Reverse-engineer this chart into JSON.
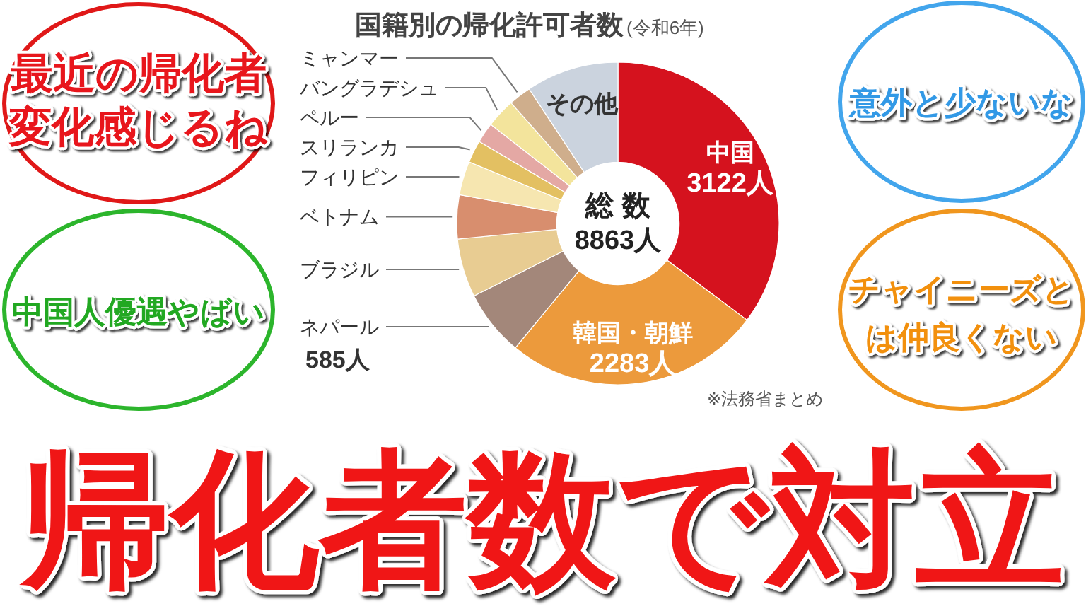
{
  "chart_data": {
    "type": "donut",
    "title": "国籍別の帰化許可者数",
    "subtitle": "(令和6年)",
    "categories": [
      "中国",
      "韓国・朝鮮",
      "ネパール",
      "ブラジル",
      "ベトナム",
      "フィリピン",
      "スリランカ",
      "ペルー",
      "バングラデシュ",
      "ミャンマー",
      "その他"
    ],
    "values": [
      3122,
      2283,
      585,
      520,
      390,
      300,
      200,
      180,
      260,
      200,
      823
    ],
    "colors": [
      "#d5121e",
      "#ec9a3c",
      "#a3877a",
      "#e8cc92",
      "#d88e6e",
      "#f6e6b0",
      "#e3c062",
      "#e4a8a4",
      "#f3e49c",
      "#cfae8c",
      "#cbd3de"
    ],
    "value_labels": [
      "3122人",
      "2283人",
      "585人",
      null,
      null,
      null,
      null,
      null,
      null,
      null,
      null
    ],
    "annotations": [
      "総 数",
      "8863人",
      "※法務省まとめ",
      "最近の帰化者変化感じるね",
      "中国人優遇やばい",
      "意外と少ないな",
      "チャイニーズとは仲良くない",
      "帰化者数で対立"
    ]
  }
}
